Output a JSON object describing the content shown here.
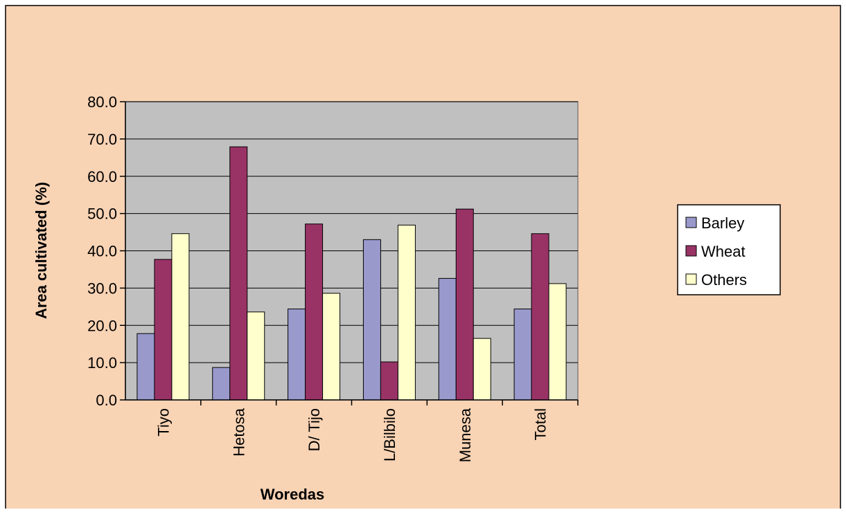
{
  "chart_data": {
    "type": "bar",
    "title": "",
    "xlabel": "Woredas",
    "ylabel": "Area cultivated (%)",
    "categories": [
      "Tiyo",
      "Hetosa",
      "D/ Tijo",
      "L/Bilbilo",
      "Munesa",
      "Total"
    ],
    "series": [
      {
        "name": "Barley",
        "color": "#9999CC",
        "values": [
          17.8,
          8.7,
          24.4,
          43.0,
          32.6,
          24.4
        ]
      },
      {
        "name": "Wheat",
        "color": "#993366",
        "values": [
          37.7,
          67.9,
          47.2,
          10.2,
          51.2,
          44.6
        ]
      },
      {
        "name": "Others",
        "color": "#FFFFCC",
        "values": [
          44.6,
          23.6,
          28.6,
          46.9,
          16.5,
          31.2
        ]
      }
    ],
    "ylim": [
      0,
      80
    ],
    "yticks": [
      "0.0",
      "10.0",
      "20.0",
      "30.0",
      "40.0",
      "50.0",
      "60.0",
      "70.0",
      "80.0"
    ],
    "grid": true,
    "legend_position": "right",
    "colors": {
      "chart_background": "#F8D3B4",
      "plot_background": "#C0C0C0",
      "gridline": "#000000",
      "border": "#000000"
    }
  }
}
